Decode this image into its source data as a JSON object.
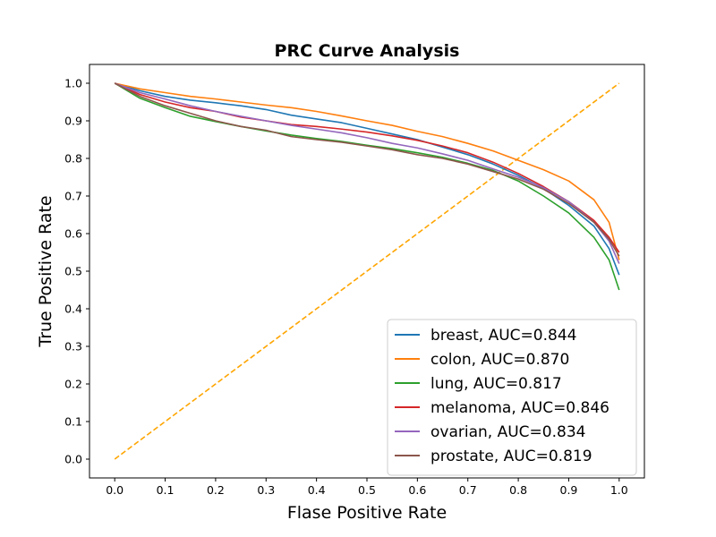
{
  "chart_data": {
    "type": "line",
    "title": "PRC Curve Analysis",
    "xlabel": "Flase Positive Rate",
    "ylabel": "True Positive Rate",
    "xlim": [
      -0.05,
      1.05
    ],
    "ylim": [
      -0.05,
      1.05
    ],
    "xticks": [
      "0.0",
      "0.1",
      "0.2",
      "0.3",
      "0.4",
      "0.5",
      "0.6",
      "0.7",
      "0.8",
      "0.9",
      "1.0"
    ],
    "yticks": [
      "0.0",
      "0.1",
      "0.2",
      "0.3",
      "0.4",
      "0.5",
      "0.6",
      "0.7",
      "0.8",
      "0.9",
      "1.0"
    ],
    "grid": false,
    "legend_position": "lower-right",
    "diagonal": {
      "x": [
        0,
        1
      ],
      "y": [
        0,
        1
      ],
      "color": "#ffa500",
      "style": "dashed"
    },
    "series": [
      {
        "name": "breast, AUC=0.844",
        "color": "#1f77b4",
        "x": [
          0,
          0.05,
          0.1,
          0.15,
          0.2,
          0.25,
          0.3,
          0.35,
          0.4,
          0.45,
          0.5,
          0.55,
          0.6,
          0.65,
          0.7,
          0.75,
          0.8,
          0.85,
          0.9,
          0.95,
          0.98,
          1.0
        ],
        "y": [
          1.0,
          0.98,
          0.965,
          0.955,
          0.948,
          0.94,
          0.93,
          0.915,
          0.905,
          0.895,
          0.88,
          0.865,
          0.85,
          0.83,
          0.81,
          0.785,
          0.755,
          0.72,
          0.675,
          0.62,
          0.56,
          0.49
        ]
      },
      {
        "name": "colon, AUC=0.870",
        "color": "#ff7f0e",
        "x": [
          0,
          0.05,
          0.1,
          0.15,
          0.2,
          0.25,
          0.3,
          0.35,
          0.4,
          0.45,
          0.5,
          0.55,
          0.6,
          0.65,
          0.7,
          0.75,
          0.8,
          0.85,
          0.9,
          0.95,
          0.98,
          1.0
        ],
        "y": [
          1.0,
          0.985,
          0.975,
          0.965,
          0.958,
          0.95,
          0.942,
          0.935,
          0.925,
          0.913,
          0.9,
          0.888,
          0.872,
          0.858,
          0.84,
          0.82,
          0.795,
          0.77,
          0.74,
          0.69,
          0.63,
          0.53
        ]
      },
      {
        "name": "lung, AUC=0.817",
        "color": "#2ca02c",
        "x": [
          0,
          0.05,
          0.1,
          0.15,
          0.2,
          0.25,
          0.3,
          0.35,
          0.4,
          0.45,
          0.5,
          0.55,
          0.6,
          0.65,
          0.7,
          0.75,
          0.8,
          0.85,
          0.9,
          0.95,
          0.98,
          1.0
        ],
        "y": [
          1.0,
          0.96,
          0.935,
          0.912,
          0.898,
          0.885,
          0.873,
          0.862,
          0.853,
          0.845,
          0.835,
          0.826,
          0.815,
          0.803,
          0.787,
          0.768,
          0.74,
          0.7,
          0.655,
          0.59,
          0.53,
          0.45
        ]
      },
      {
        "name": "melanoma, AUC=0.846",
        "color": "#d62728",
        "x": [
          0,
          0.05,
          0.1,
          0.15,
          0.2,
          0.25,
          0.3,
          0.35,
          0.4,
          0.45,
          0.5,
          0.55,
          0.6,
          0.65,
          0.7,
          0.75,
          0.8,
          0.85,
          0.9,
          0.95,
          0.98,
          1.0
        ],
        "y": [
          1.0,
          0.97,
          0.95,
          0.935,
          0.925,
          0.91,
          0.9,
          0.89,
          0.885,
          0.878,
          0.87,
          0.86,
          0.848,
          0.833,
          0.815,
          0.79,
          0.76,
          0.725,
          0.685,
          0.635,
          0.59,
          0.55
        ]
      },
      {
        "name": "ovarian, AUC=0.834",
        "color": "#9467bd",
        "x": [
          0,
          0.05,
          0.1,
          0.15,
          0.2,
          0.25,
          0.3,
          0.35,
          0.4,
          0.45,
          0.5,
          0.55,
          0.6,
          0.65,
          0.7,
          0.75,
          0.8,
          0.85,
          0.9,
          0.95,
          0.98,
          1.0
        ],
        "y": [
          1.0,
          0.975,
          0.958,
          0.94,
          0.925,
          0.912,
          0.9,
          0.888,
          0.878,
          0.868,
          0.855,
          0.84,
          0.828,
          0.812,
          0.795,
          0.772,
          0.75,
          0.722,
          0.685,
          0.63,
          0.58,
          0.52
        ]
      },
      {
        "name": "prostate, AUC=0.819",
        "color": "#8c564b",
        "x": [
          0,
          0.05,
          0.1,
          0.15,
          0.2,
          0.25,
          0.3,
          0.35,
          0.4,
          0.45,
          0.5,
          0.55,
          0.6,
          0.65,
          0.7,
          0.75,
          0.8,
          0.85,
          0.9,
          0.95,
          0.98,
          1.0
        ],
        "y": [
          1.0,
          0.965,
          0.94,
          0.92,
          0.9,
          0.885,
          0.875,
          0.858,
          0.85,
          0.843,
          0.833,
          0.823,
          0.81,
          0.8,
          0.785,
          0.765,
          0.745,
          0.718,
          0.68,
          0.63,
          0.585,
          0.54
        ]
      }
    ]
  }
}
